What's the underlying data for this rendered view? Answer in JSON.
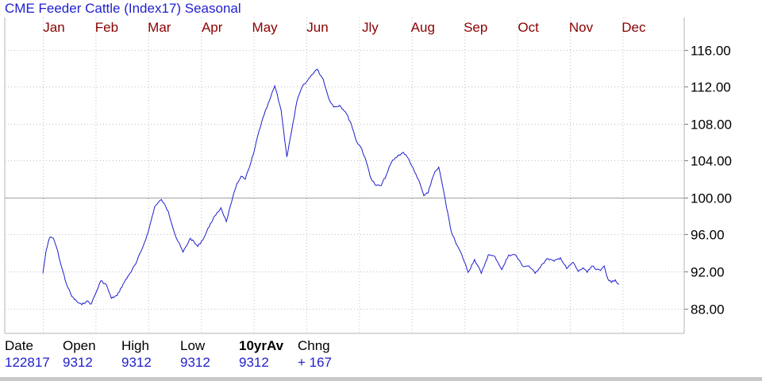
{
  "title": "CME Feeder Cattle (Index17) Seasonal",
  "colors": {
    "line": "#1f1fcc",
    "months": "#8b0000",
    "grid": "#b4b4b4",
    "title": "#1f1fcc"
  },
  "chart_data": {
    "type": "line",
    "title": "CME Feeder Cattle (Index17) Seasonal",
    "x_labels": [
      "Jan",
      "Feb",
      "Mar",
      "Apr",
      "May",
      "Jun",
      "Jly",
      "Aug",
      "Sep",
      "Oct",
      "Nov",
      "Dec"
    ],
    "y_tick_labels": [
      "116.00",
      "112.00",
      "108.00",
      "104.00",
      "100.00",
      "96.00",
      "92.00",
      "88.00"
    ],
    "y_ticks": [
      116,
      112,
      108,
      104,
      100,
      96,
      92,
      88
    ],
    "ylim": [
      85.3,
      119.5
    ],
    "x_axis": "month of year (fractional)",
    "reference_line": 100,
    "grid": true,
    "y_axis_side": "right",
    "series": [
      {
        "x": [
          0.0,
          0.06,
          0.13,
          0.2,
          0.26,
          0.35,
          0.45,
          0.55,
          0.65,
          0.74,
          0.83,
          0.92,
          1.0,
          1.1,
          1.2,
          1.3,
          1.41,
          1.52,
          1.64,
          1.76,
          1.88,
          2.0,
          2.12,
          2.25,
          2.38,
          2.52,
          2.66,
          2.8,
          2.94,
          3.06,
          3.18,
          3.28,
          3.38,
          3.48,
          3.58,
          3.68,
          3.76,
          3.84,
          3.92,
          4.0,
          4.1,
          4.2,
          4.3,
          4.4,
          4.52,
          4.63,
          4.72,
          4.82,
          4.92,
          5.0,
          5.1,
          5.2,
          5.32,
          5.42,
          5.52,
          5.63,
          5.74,
          5.85,
          5.95,
          6.05,
          6.14,
          6.23,
          6.32,
          6.42,
          6.52,
          6.62,
          6.73,
          6.84,
          6.95,
          7.05,
          7.15,
          7.23,
          7.31,
          7.38,
          7.44,
          7.51,
          7.58,
          7.66,
          7.75,
          7.85,
          7.95,
          8.07,
          8.19,
          8.32,
          8.45,
          8.58,
          8.71,
          8.84,
          8.97,
          9.1,
          9.22,
          9.34,
          9.46,
          9.58,
          9.7,
          9.82,
          9.94,
          10.06,
          10.16,
          10.25,
          10.33,
          10.42,
          10.5,
          10.58,
          10.65,
          10.72,
          10.79,
          10.86,
          10.93
        ],
        "y": [
          91.8,
          94.2,
          95.7,
          95.6,
          94.6,
          92.6,
          90.6,
          89.3,
          88.7,
          88.4,
          88.8,
          88.5,
          89.6,
          91.0,
          90.6,
          89.1,
          89.4,
          90.6,
          91.7,
          92.8,
          94.4,
          96.3,
          99.0,
          99.8,
          98.5,
          95.8,
          94.1,
          95.6,
          94.7,
          95.7,
          97.2,
          98.1,
          98.9,
          97.4,
          99.5,
          101.5,
          102.3,
          102.0,
          103.3,
          104.8,
          107.2,
          109.0,
          110.5,
          112.1,
          109.5,
          104.4,
          107.2,
          110.4,
          112.0,
          112.5,
          113.3,
          113.9,
          112.8,
          110.8,
          109.8,
          110.0,
          109.3,
          108.0,
          106.1,
          105.3,
          103.8,
          102.0,
          101.3,
          101.3,
          102.5,
          103.9,
          104.5,
          104.9,
          104.1,
          102.8,
          101.6,
          100.2,
          100.5,
          101.9,
          102.8,
          103.3,
          101.4,
          98.9,
          96.3,
          94.9,
          93.8,
          91.9,
          93.3,
          91.8,
          93.8,
          93.6,
          92.2,
          93.8,
          93.8,
          92.6,
          92.6,
          91.8,
          92.7,
          93.4,
          93.1,
          93.5,
          92.3,
          93.0,
          92.0,
          92.4,
          91.9,
          92.6,
          92.2,
          92.1,
          92.6,
          91.2,
          90.8,
          91.1,
          90.6
        ]
      }
    ]
  },
  "info": {
    "headers": [
      "Date",
      "Open",
      "High",
      "Low",
      "10yrAv",
      "Chng"
    ],
    "values": [
      "122817",
      "9312",
      "9312",
      "9312",
      "9312",
      "+ 167"
    ]
  }
}
